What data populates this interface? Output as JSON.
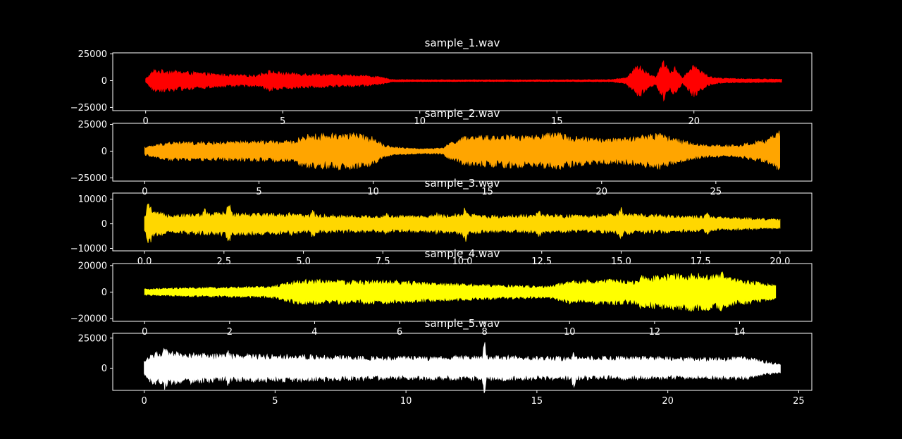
{
  "figure": {
    "background": "#000000",
    "foreground": "#ffffff"
  },
  "chart_data": [
    {
      "type": "line",
      "title": "sample_1.wav",
      "color": "#ff0000",
      "xlim": [
        -1.2,
        24.3
      ],
      "ylim": [
        -28000,
        26000
      ],
      "x_ticks": [
        0,
        5,
        10,
        15,
        20
      ],
      "x_tick_labels": [
        "0",
        "5",
        "10",
        "15",
        "20"
      ],
      "y_ticks": [
        25000,
        0,
        -25000
      ],
      "y_tick_labels": [
        "25000",
        "0",
        "−25000"
      ],
      "x_end": 23.2,
      "envelope": {
        "t": [
          0,
          0.3,
          1,
          2,
          3,
          4,
          4.5,
          5,
          6,
          7,
          8,
          8.6,
          9,
          10,
          12,
          14,
          16,
          17,
          17.5,
          18,
          18.3,
          18.6,
          18.9,
          19.1,
          19.3,
          19.6,
          20,
          20.3,
          20.6,
          21,
          22,
          23.2
        ],
        "amp": [
          2000,
          11000,
          10000,
          8000,
          6000,
          5500,
          10000,
          8000,
          7000,
          6000,
          5500,
          3500,
          1200,
          1000,
          900,
          900,
          1000,
          1200,
          3000,
          17000,
          8000,
          4000,
          20000,
          9000,
          14000,
          3000,
          17000,
          9000,
          4000,
          2500,
          2000,
          1500
        ]
      }
    },
    {
      "type": "line",
      "title": "sample_2.wav",
      "color": "#ffa500",
      "xlim": [
        -1.4,
        29.2
      ],
      "ylim": [
        -28000,
        26000
      ],
      "x_ticks": [
        0,
        5,
        10,
        15,
        20,
        25
      ],
      "x_tick_labels": [
        "0",
        "5",
        "10",
        "15",
        "20",
        "25"
      ],
      "y_ticks": [
        25000,
        0,
        -25000
      ],
      "y_tick_labels": [
        "25000",
        "0",
        "−25000"
      ],
      "x_end": 27.8,
      "envelope": {
        "t": [
          0,
          1,
          3,
          5,
          6.5,
          7,
          9,
          10,
          10.5,
          11,
          12,
          13,
          13.5,
          14,
          16,
          17,
          18,
          19,
          20,
          21,
          22,
          22.5,
          23,
          24,
          24.5,
          26,
          27.3,
          27.8
        ],
        "amp": [
          4000,
          9000,
          9000,
          10000,
          10000,
          16000,
          18000,
          14000,
          6000,
          4000,
          2500,
          3000,
          10000,
          14000,
          16000,
          15000,
          18000,
          14000,
          12000,
          13000,
          16000,
          18000,
          14000,
          8000,
          6000,
          6000,
          12000,
          20000
        ]
      }
    },
    {
      "type": "line",
      "title": "sample_3.wav",
      "color": "#ffd700",
      "xlim": [
        -1.0,
        21.0
      ],
      "ylim": [
        -11000,
        12500
      ],
      "x_ticks": [
        0,
        2.5,
        5,
        7.5,
        10,
        12.5,
        15,
        17.5,
        20
      ],
      "x_tick_labels": [
        "0.0",
        "2.5",
        "5.0",
        "7.5",
        "10.0",
        "12.5",
        "15.0",
        "17.5",
        "20.0"
      ],
      "y_ticks": [
        10000,
        0,
        -10000
      ],
      "y_tick_labels": [
        "10000",
        "0",
        "−10000"
      ],
      "x_end": 20.0,
      "envelope": {
        "t": [
          0,
          0.1,
          0.3,
          1,
          2.5,
          4,
          5,
          7,
          9,
          10,
          11,
          12.5,
          14,
          15,
          17,
          18,
          19,
          20
        ],
        "amp": [
          3000,
          7000,
          5000,
          4000,
          5000,
          4500,
          4000,
          3500,
          3500,
          4500,
          3500,
          4000,
          3500,
          4500,
          3500,
          3000,
          2500,
          2000
        ]
      },
      "spikes": [
        {
          "x": 0.15,
          "a": 1.6
        },
        {
          "x": 1.9,
          "a": 1.4
        },
        {
          "x": 2.65,
          "a": 2.0
        },
        {
          "x": 4.6,
          "a": 1.3
        },
        {
          "x": 5.3,
          "a": 1.6
        },
        {
          "x": 7.6,
          "a": 1.4
        },
        {
          "x": 9.2,
          "a": 1.3
        },
        {
          "x": 10.1,
          "a": 1.8
        },
        {
          "x": 12.4,
          "a": 1.5
        },
        {
          "x": 15.0,
          "a": 1.5
        },
        {
          "x": 17.7,
          "a": 1.6
        }
      ]
    },
    {
      "type": "line",
      "title": "sample_4.wav",
      "color": "#ffff00",
      "xlim": [
        -0.75,
        15.7
      ],
      "ylim": [
        -22000,
        21500
      ],
      "x_ticks": [
        0,
        2,
        4,
        6,
        8,
        10,
        12,
        14
      ],
      "x_tick_labels": [
        "0",
        "2",
        "4",
        "6",
        "8",
        "10",
        "12",
        "14"
      ],
      "y_ticks": [
        20000,
        0,
        -20000
      ],
      "y_tick_labels": [
        "20000",
        "0",
        "−20000"
      ],
      "x_end": 14.85,
      "envelope": {
        "t": [
          0,
          1,
          2,
          3,
          3.5,
          4,
          5,
          6,
          7,
          8,
          9,
          9.5,
          10,
          11,
          11.5,
          12,
          13,
          13.5,
          14,
          14.85
        ],
        "amp": [
          2500,
          3500,
          4000,
          4500,
          9000,
          10000,
          9000,
          9000,
          7000,
          6000,
          5000,
          4500,
          9000,
          10000,
          9000,
          13000,
          15000,
          13000,
          10000,
          6000
        ]
      },
      "spikes": [
        {
          "x": 13.6,
          "a": 1.3
        },
        {
          "x": 11.7,
          "a": 1.3
        }
      ]
    },
    {
      "type": "line",
      "title": "sample_5.wav",
      "color": "#ffffff",
      "xlim": [
        -1.2,
        25.5
      ],
      "ylim": [
        -18500,
        29000
      ],
      "x_ticks": [
        0,
        5,
        10,
        15,
        20,
        25
      ],
      "x_tick_labels": [
        "0",
        "5",
        "10",
        "15",
        "20",
        "25"
      ],
      "y_ticks": [
        25000,
        0
      ],
      "y_tick_labels": [
        "25000",
        "0"
      ],
      "x_end": 24.3,
      "envelope": {
        "t": [
          0,
          0.3,
          1,
          3,
          5,
          7,
          9,
          11,
          13,
          15,
          17,
          19,
          21,
          23,
          23.5,
          24.3
        ],
        "amp": [
          6000,
          14000,
          14000,
          12000,
          12000,
          11000,
          10000,
          10000,
          11000,
          10000,
          10000,
          10000,
          9000,
          10000,
          7000,
          4000
        ]
      },
      "spikes": [
        {
          "x": 13.0,
          "a": 2.2
        },
        {
          "x": 16.4,
          "a": 1.8
        },
        {
          "x": 0.8,
          "a": 1.4
        },
        {
          "x": 3.2,
          "a": 1.3
        }
      ]
    }
  ]
}
